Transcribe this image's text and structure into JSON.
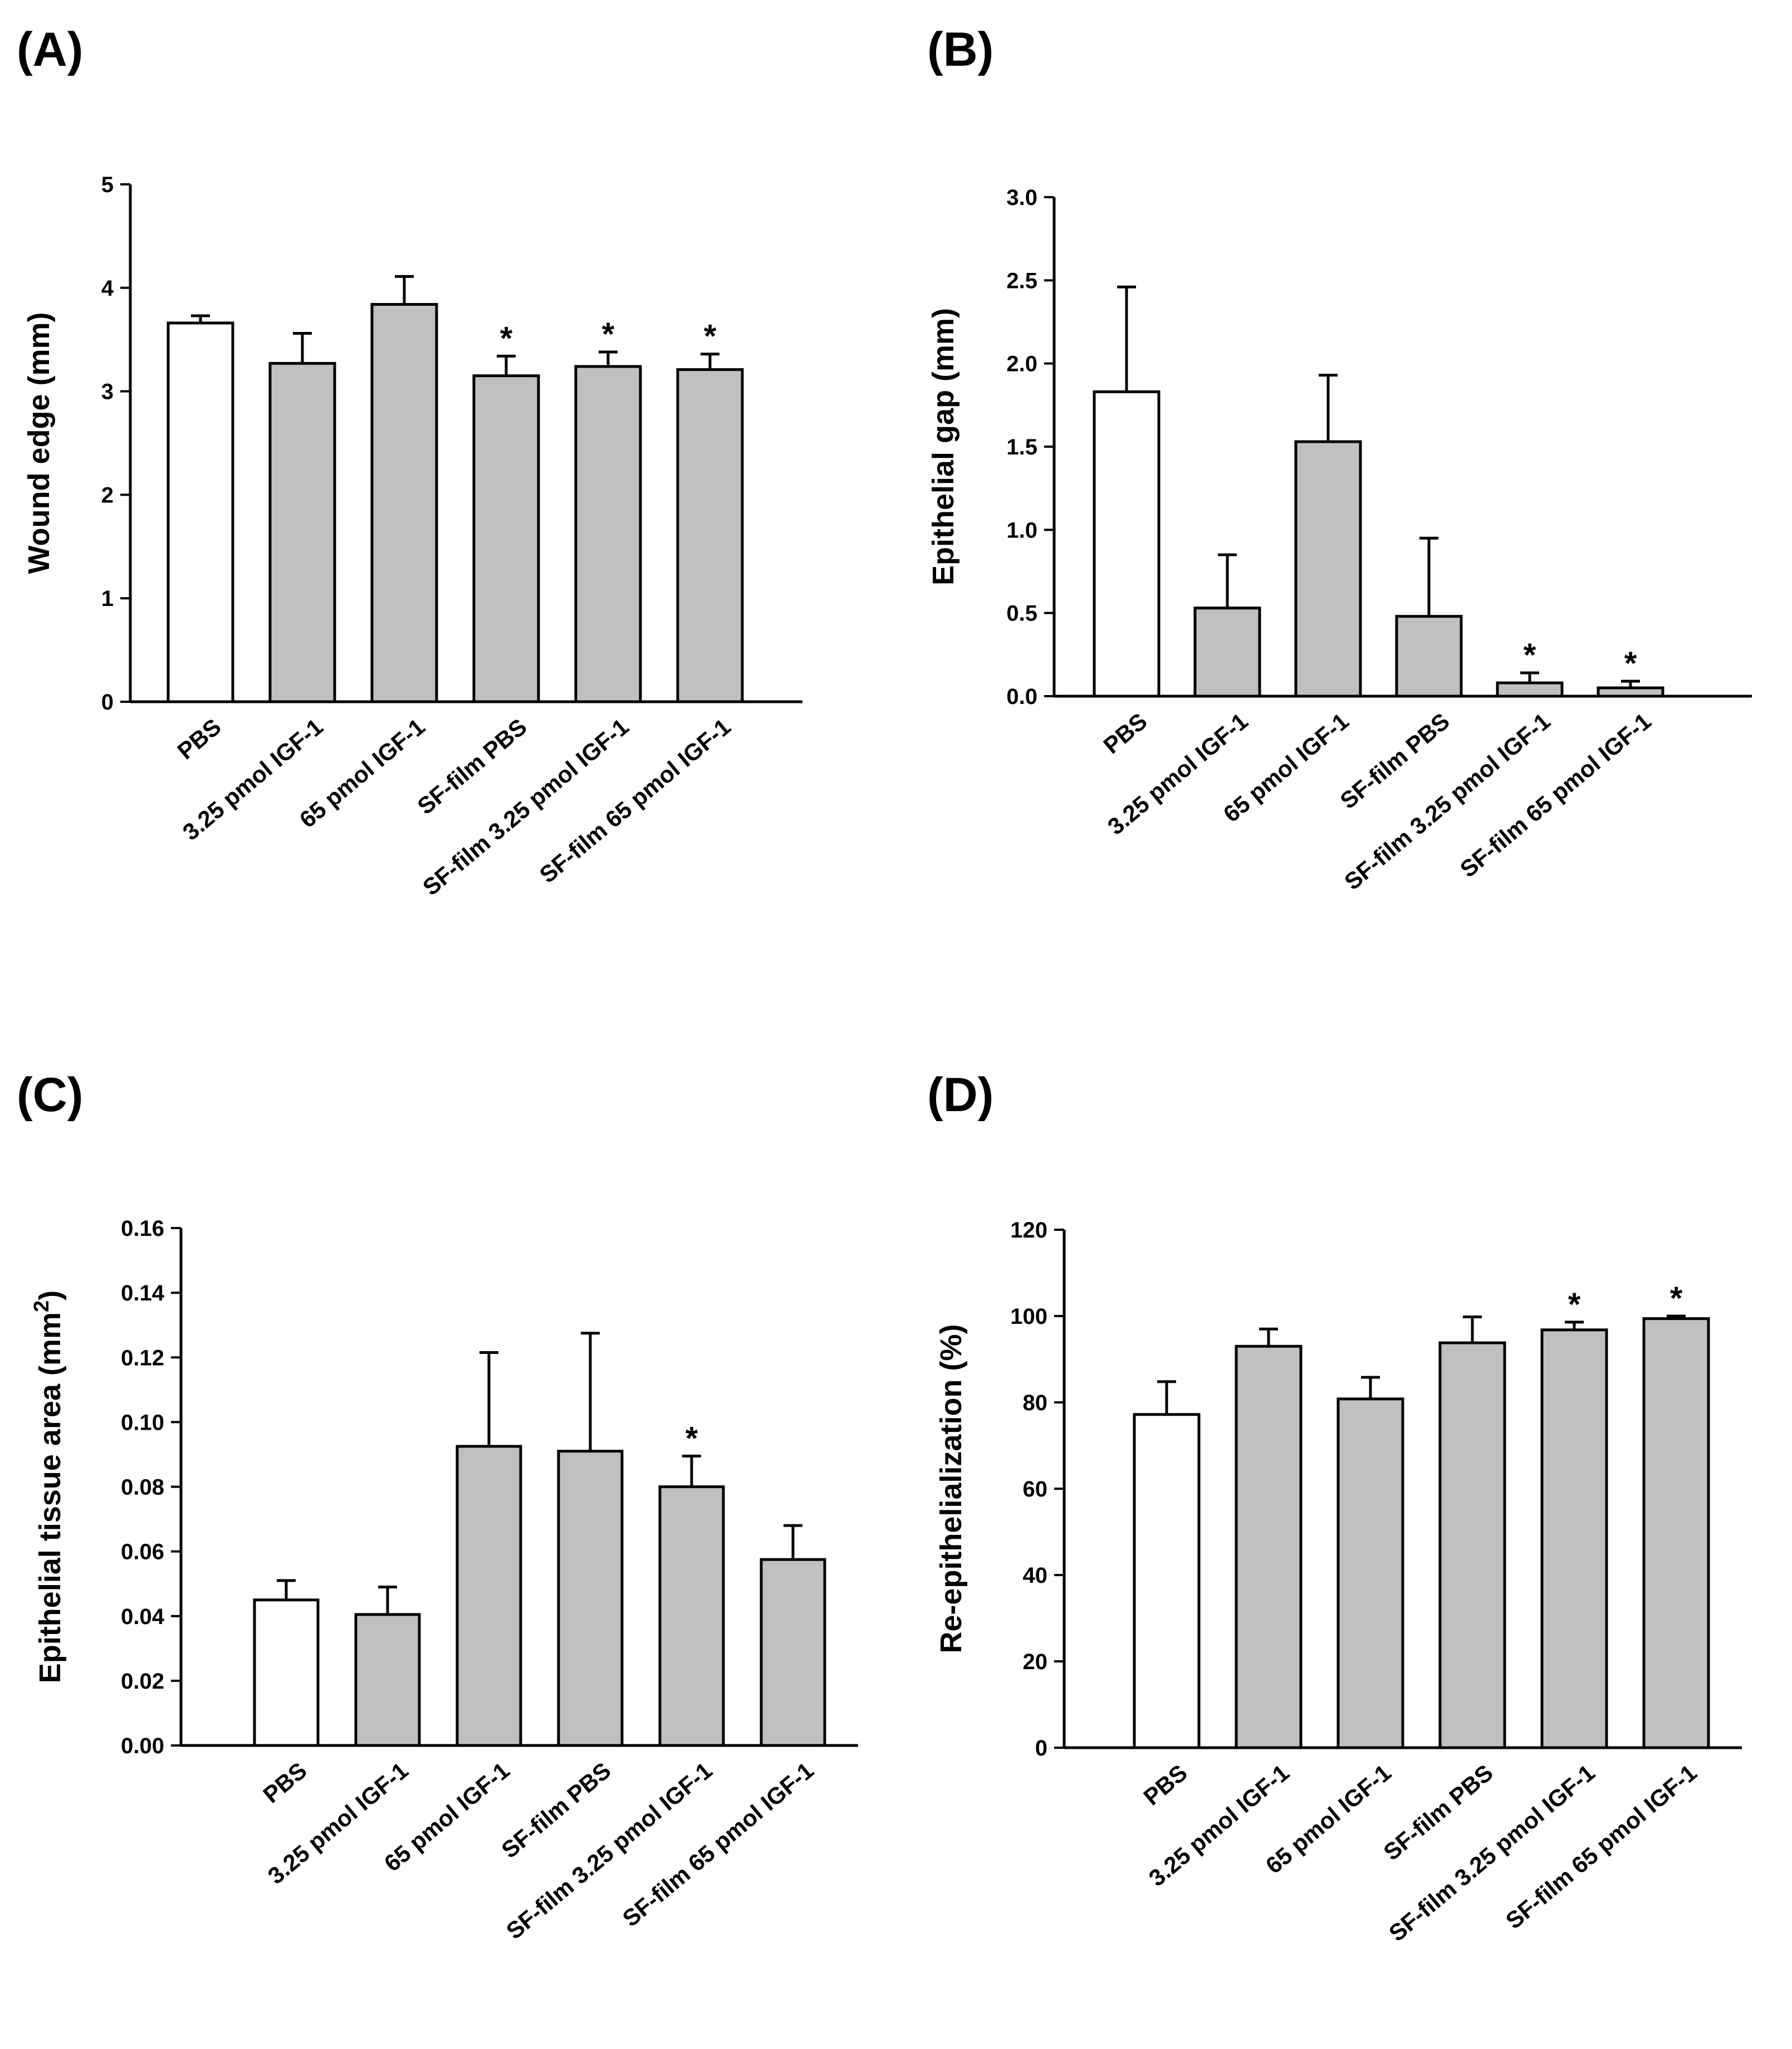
{
  "colors": {
    "control": "#ffffff",
    "treatment": "#c0c0c0",
    "ink": "#000000"
  },
  "chart_data": [
    {
      "panel": "(A)",
      "type": "bar",
      "ylabel": "Wound edge (mm)",
      "ylim": [
        0,
        5
      ],
      "yticks": [
        0,
        1,
        2,
        3,
        4,
        5
      ],
      "ytick_labels": [
        "0",
        "1",
        "2",
        "3",
        "4",
        "5"
      ],
      "categories": [
        "PBS",
        "3.25 pmol IGF-1",
        "65 pmol IGF-1",
        "SF-film PBS",
        "SF-film 3.25 pmol IGF-1",
        "SF-film 65 pmol IGF-1"
      ],
      "values": [
        3.66,
        3.27,
        3.84,
        3.15,
        3.24,
        3.21
      ],
      "errors": [
        0.07,
        0.29,
        0.27,
        0.19,
        0.14,
        0.15
      ],
      "significance": [
        "",
        "",
        "",
        "*",
        "*",
        "*"
      ]
    },
    {
      "panel": "(B)",
      "type": "bar",
      "ylabel": "Epithelial gap (mm)",
      "ylim": [
        0,
        3
      ],
      "yticks": [
        0,
        0.5,
        1,
        1.5,
        2,
        2.5,
        3
      ],
      "ytick_labels": [
        "0.0",
        "0.5",
        "1.0",
        "1.5",
        "2.0",
        "2.5",
        "3.0"
      ],
      "categories": [
        "PBS",
        "3.25 pmol IGF-1",
        "65 pmol IGF-1",
        "SF-film PBS",
        "SF-film 3.25 pmol IGF-1",
        "SF-film 65 pmol IGF-1"
      ],
      "values": [
        1.83,
        0.53,
        1.53,
        0.48,
        0.08,
        0.05
      ],
      "errors": [
        0.63,
        0.32,
        0.4,
        0.47,
        0.06,
        0.04
      ],
      "significance": [
        "",
        "",
        "",
        "",
        "*",
        "*"
      ]
    },
    {
      "panel": "(C)",
      "type": "bar",
      "ylabel": "Epithelial tissue area (mm",
      "ylabel_sup": "2",
      "ylabel_suffix": ")",
      "ylim": [
        0,
        0.16
      ],
      "yticks": [
        0,
        0.02,
        0.04,
        0.06,
        0.08,
        0.1,
        0.12,
        0.14,
        0.16
      ],
      "ytick_labels": [
        "0.00",
        "0.02",
        "0.04",
        "0.06",
        "0.08",
        "0.10",
        "0.12",
        "0.14",
        "0.16"
      ],
      "categories": [
        "PBS",
        "3.25 pmol IGF-1",
        "65 pmol IGF-1",
        "SF-film PBS",
        "SF-film 3.25 pmol IGF-1",
        "SF-film 65 pmol IGF-1"
      ],
      "values": [
        0.045,
        0.0405,
        0.0925,
        0.091,
        0.08,
        0.0575
      ],
      "errors": [
        0.006,
        0.0085,
        0.029,
        0.0365,
        0.0095,
        0.0105
      ],
      "significance": [
        "",
        "",
        "",
        "",
        "*",
        ""
      ]
    },
    {
      "panel": "(D)",
      "type": "bar",
      "ylabel": "Re-epithelialization (%)",
      "ylim": [
        0,
        120
      ],
      "yticks": [
        0,
        20,
        40,
        60,
        80,
        100,
        120
      ],
      "ytick_labels": [
        "0",
        "20",
        "40",
        "60",
        "80",
        "100",
        "120"
      ],
      "categories": [
        "PBS",
        "3.25 pmol IGF-1",
        "65 pmol IGF-1",
        "SF-film PBS",
        "SF-film 3.25 pmol IGF-1",
        "SF-film 65 pmol IGF-1"
      ],
      "values": [
        77.2,
        93.0,
        80.8,
        93.8,
        96.8,
        99.4
      ],
      "errors": [
        7.6,
        4.0,
        5.0,
        6.0,
        1.8,
        0.6
      ],
      "significance": [
        "",
        "",
        "",
        "",
        "*",
        "*"
      ]
    }
  ]
}
